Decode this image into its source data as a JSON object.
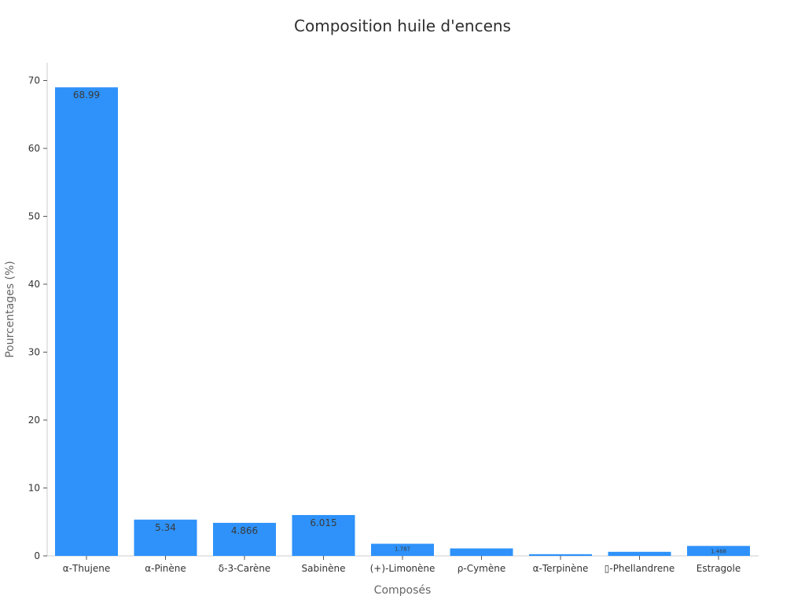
{
  "chart_data": {
    "type": "bar",
    "title": "Composition huile d'encens",
    "xlabel": "Composés",
    "ylabel": "Pourcentages (%)",
    "categories": [
      "α-Thujene",
      "α-Pinène",
      "δ-3-Carène",
      "Sabinène",
      "(+)-Limonène",
      "ρ-Cymène",
      "α-Terpinène",
      "▯-Phellandrene",
      "Estragole"
    ],
    "values": [
      68.99,
      5.34,
      4.866,
      6.015,
      1.787,
      1.1,
      0.25,
      0.6,
      1.468
    ],
    "value_labels": [
      "68.99",
      "5.34",
      "4.866",
      "6.015",
      "1.787",
      "",
      "",
      "",
      "1.468"
    ],
    "yticks": [
      0,
      10,
      20,
      30,
      40,
      50,
      60,
      70
    ],
    "ylim": [
      0,
      72.6
    ],
    "grid": false,
    "colors": {
      "bar": "#2e92fa"
    }
  }
}
